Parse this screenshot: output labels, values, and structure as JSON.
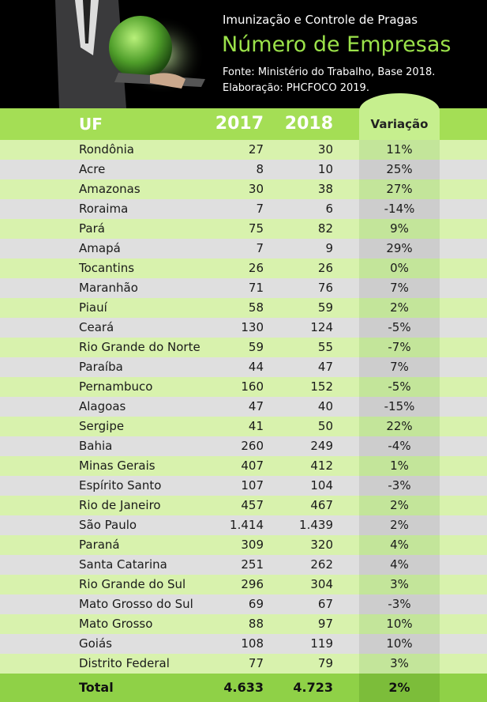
{
  "header": {
    "subtitle": "Imunização e Controle de Pragas",
    "title": "Número de Empresas",
    "source": "Fonte:  Ministério do Trabalho, Base 2018.",
    "credit": "Elaboração: PHCFOCO 2019."
  },
  "table": {
    "columns": [
      "UF",
      "2017",
      "2018",
      "Variação"
    ],
    "rows": [
      [
        "Rondônia",
        "27",
        "30",
        "11%"
      ],
      [
        "Acre",
        "8",
        "10",
        "25%"
      ],
      [
        "Amazonas",
        "30",
        "38",
        "27%"
      ],
      [
        "Roraima",
        "7",
        "6",
        "-14%"
      ],
      [
        "Pará",
        "75",
        "82",
        "9%"
      ],
      [
        "Amapá",
        "7",
        "9",
        "29%"
      ],
      [
        "Tocantins",
        "26",
        "26",
        "0%"
      ],
      [
        "Maranhão",
        "71",
        "76",
        "7%"
      ],
      [
        "Piauí",
        "58",
        "59",
        "2%"
      ],
      [
        "Ceará",
        "130",
        "124",
        "-5%"
      ],
      [
        "Rio Grande do Norte",
        "59",
        "55",
        "-7%"
      ],
      [
        "Paraíba",
        "44",
        "47",
        "7%"
      ],
      [
        "Pernambuco",
        "160",
        "152",
        "-5%"
      ],
      [
        "Alagoas",
        "47",
        "40",
        "-15%"
      ],
      [
        "Sergipe",
        "41",
        "50",
        "22%"
      ],
      [
        "Bahia",
        "260",
        "249",
        "-4%"
      ],
      [
        "Minas Gerais",
        "407",
        "412",
        "1%"
      ],
      [
        "Espírito Santo",
        "107",
        "104",
        "-3%"
      ],
      [
        "Rio de Janeiro",
        "457",
        "467",
        "2%"
      ],
      [
        "São Paulo",
        "1.414",
        "1.439",
        "2%"
      ],
      [
        "Paraná",
        "309",
        "320",
        "4%"
      ],
      [
        "Santa Catarina",
        "251",
        "262",
        "4%"
      ],
      [
        "Rio Grande do Sul",
        "296",
        "304",
        "3%"
      ],
      [
        "Mato Grosso do Sul",
        "69",
        "67",
        "-3%"
      ],
      [
        "Mato Grosso",
        "88",
        "97",
        "10%"
      ],
      [
        "Goiás",
        "108",
        "119",
        "10%"
      ],
      [
        "Distrito Federal",
        "77",
        "79",
        "3%"
      ]
    ],
    "total": [
      "Total",
      "4.633",
      "4.723",
      "2%"
    ]
  }
}
